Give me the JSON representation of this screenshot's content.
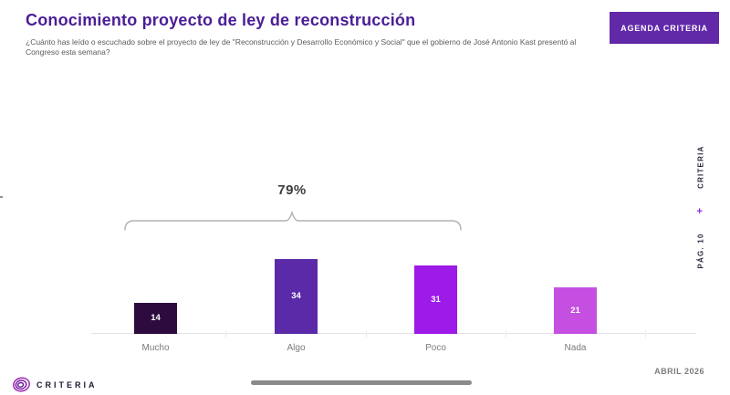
{
  "header": {
    "title": "Conocimiento proyecto de ley de reconstrucción",
    "subtitle": "¿Cuánto has leído o escuchado sobre el proyecto de ley de \"Reconstrucción y Desarrollo Económico y Social\" que el gobierno de José Antonio Kast presentó al Congreso esta semana?",
    "agenda_button_label": "AGENDA CRITERIA"
  },
  "chart_data": {
    "type": "bar",
    "categories": [
      "Mucho",
      "Algo",
      "Poco",
      "Nada"
    ],
    "values": [
      14,
      34,
      31,
      21
    ],
    "bar_colors": [
      "#2d0b3f",
      "#5b2aa8",
      "#9d1ae8",
      "#c44fe0"
    ],
    "value_label_color": "#ffffff",
    "title": "Conocimiento proyecto de ley de reconstrucción",
    "xlabel": "",
    "ylabel": "",
    "ylim": [
      0,
      40
    ],
    "grid": false,
    "legend": false,
    "annotation": {
      "label": "79%",
      "covers": [
        "Mucho",
        "Algo",
        "Poco"
      ]
    }
  },
  "side_strip": {
    "page_label": "PÁG. 10",
    "plus": "+",
    "brand": "CRITERIA"
  },
  "decorations": {
    "left_plus": "+"
  },
  "footer": {
    "brand": "CRITERIA",
    "date": "ABRIL 2026"
  },
  "colors": {
    "title": "#4a1d96",
    "agenda_button_bg": "#6128a8",
    "bracket": "#b3b3b3",
    "axis": "#e3e3e3",
    "annotation_text": "#3d3d3d"
  }
}
